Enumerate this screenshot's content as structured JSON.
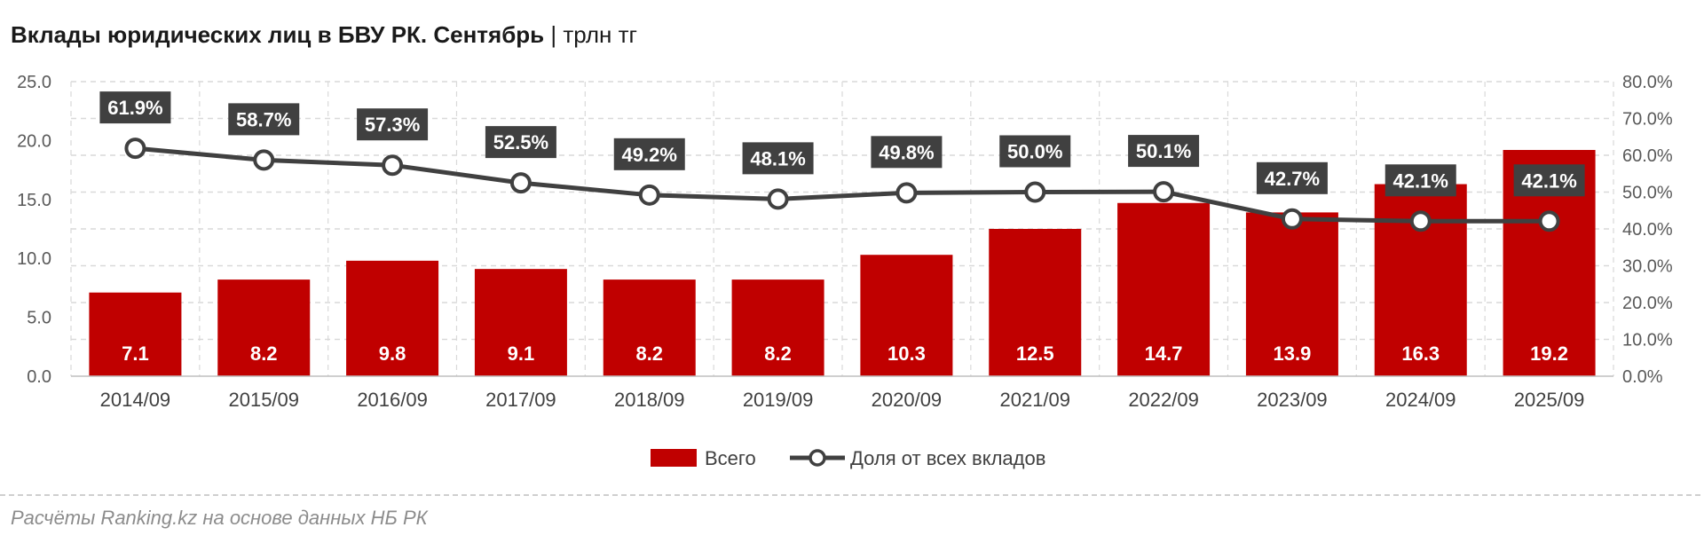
{
  "title": "Вклады юридических лиц в БВУ РК. Сентябрь",
  "title_unit": "трлн тг",
  "source": "Расчёты Ranking.kz на основе данных НБ РК",
  "colors": {
    "bar": "#c00000",
    "line": "#404040",
    "label_bg": "#404040",
    "grid": "#d9d9d9"
  },
  "chart_data": {
    "type": "bar",
    "title": "Вклады юридических лиц в БВУ РК. Сентябрь | трлн тг",
    "categories": [
      "2014/09",
      "2015/09",
      "2016/09",
      "2017/09",
      "2018/09",
      "2019/09",
      "2020/09",
      "2021/09",
      "2022/09",
      "2023/09",
      "2024/09",
      "2025/09"
    ],
    "series": [
      {
        "name": "Всего",
        "type": "bar",
        "axis": "left",
        "values": [
          7.1,
          8.2,
          9.8,
          9.1,
          8.2,
          8.2,
          10.3,
          12.5,
          14.7,
          13.9,
          16.3,
          19.2
        ],
        "labels": [
          "7.1",
          "8.2",
          "9.8",
          "9.1",
          "8.2",
          "8.2",
          "10.3",
          "12.5",
          "14.7",
          "13.9",
          "16.3",
          "19.2"
        ]
      },
      {
        "name": "Доля от всех вкладов",
        "type": "line",
        "axis": "right",
        "values": [
          61.9,
          58.7,
          57.3,
          52.5,
          49.2,
          48.1,
          49.8,
          50.0,
          50.1,
          42.7,
          42.1,
          42.1
        ],
        "labels": [
          "61.9%",
          "58.7%",
          "57.3%",
          "52.5%",
          "49.2%",
          "48.1%",
          "49.8%",
          "50.0%",
          "50.1%",
          "42.7%",
          "42.1%",
          "42.1%"
        ]
      }
    ],
    "y_left": {
      "ylim": [
        0,
        25
      ],
      "ticks": [
        "0.0",
        "5.0",
        "10.0",
        "15.0",
        "20.0",
        "25.0"
      ]
    },
    "y_right": {
      "ylim": [
        0,
        80
      ],
      "ticks": [
        "0.0%",
        "10.0%",
        "20.0%",
        "30.0%",
        "40.0%",
        "50.0%",
        "60.0%",
        "70.0%",
        "80.0%"
      ]
    },
    "legend": {
      "position": "bottom",
      "items": [
        "Всего",
        "Доля от всех вкладов"
      ]
    },
    "grid": true
  }
}
